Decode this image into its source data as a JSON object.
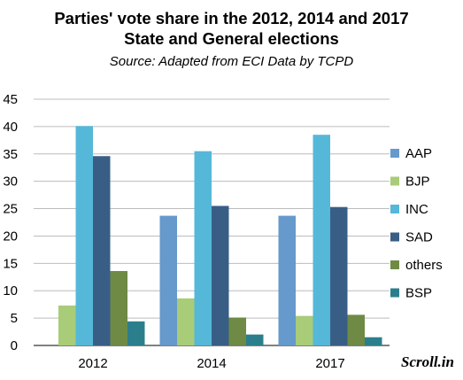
{
  "chart_data": {
    "type": "bar",
    "title_line1": "Parties' vote share in the 2012, 2014 and 2017",
    "title_line2": "State and General elections",
    "subtitle": "Source: Adapted from ECI Data by TCPD",
    "categories": [
      "2012",
      "2014",
      "2017"
    ],
    "ylim": [
      0,
      45
    ],
    "yticks": [
      0,
      5,
      10,
      15,
      20,
      25,
      30,
      35,
      40,
      45
    ],
    "grid": true,
    "legend_position": "right",
    "series": [
      {
        "name": "AAP",
        "color": "#6699cc",
        "values": [
          null,
          23.7,
          23.7
        ]
      },
      {
        "name": "BJP",
        "color": "#a8cc78",
        "values": [
          7.3,
          8.6,
          5.4
        ]
      },
      {
        "name": "INC",
        "color": "#55b8d8",
        "values": [
          40.1,
          35.5,
          38.5
        ]
      },
      {
        "name": "SAD",
        "color": "#395e86",
        "values": [
          34.6,
          25.5,
          25.3
        ]
      },
      {
        "name": "others",
        "color": "#6e8a44",
        "values": [
          13.6,
          5.1,
          5.6
        ]
      },
      {
        "name": "BSP",
        "color": "#2b7f8c",
        "values": [
          4.4,
          2.0,
          1.5
        ]
      }
    ]
  },
  "brand": "Scroll.in"
}
